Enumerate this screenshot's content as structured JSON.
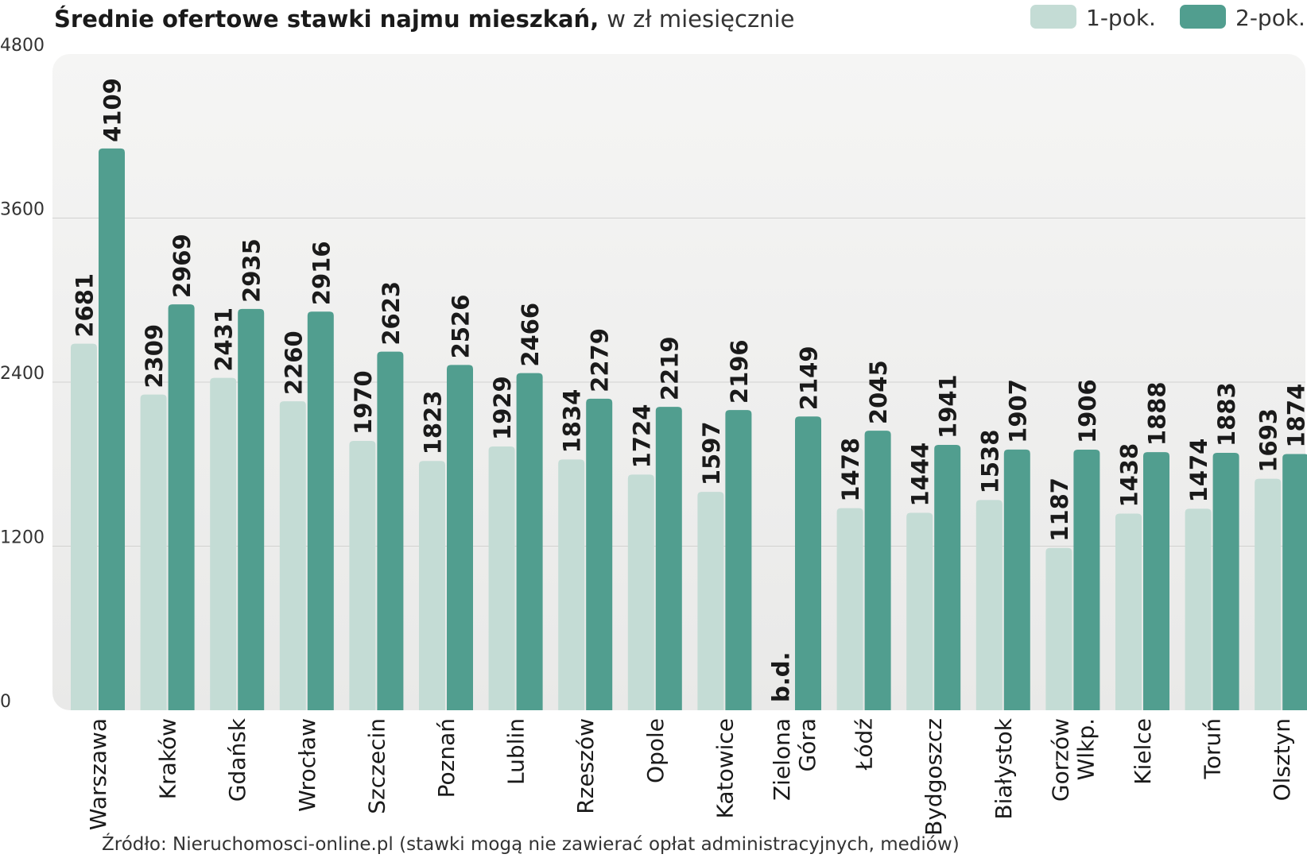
{
  "chart_data": {
    "type": "bar",
    "title": "Średnie ofertowe stawki najmu mieszkań,",
    "subtitle": "w zł miesięcznie",
    "source": "Źródło: Nieruchomosci-online.pl (stawki mogą nie zawierać opłat administracyjnych, mediów)",
    "ylim": [
      0,
      4800
    ],
    "yticks": [
      0,
      1200,
      2400,
      3600,
      4800
    ],
    "grid": true,
    "legend_position": "top-right",
    "missing_label": "b.d.",
    "categories": [
      [
        "Warszawa"
      ],
      [
        "Kraków"
      ],
      [
        "Gdańsk"
      ],
      [
        "Wrocław"
      ],
      [
        "Szczecin"
      ],
      [
        "Poznań"
      ],
      [
        "Lublin"
      ],
      [
        "Rzeszów"
      ],
      [
        "Opole"
      ],
      [
        "Katowice"
      ],
      [
        "Zielona",
        "Góra"
      ],
      [
        "Łódź"
      ],
      [
        "Bydgoszcz"
      ],
      [
        "Białystok"
      ],
      [
        "Gorzów",
        "Wlkp."
      ],
      [
        "Kielce"
      ],
      [
        "Toruń"
      ],
      [
        "Olsztyn"
      ]
    ],
    "series": [
      {
        "name": "1-pok.",
        "color": "#c4dcd5",
        "values": [
          2681,
          2309,
          2431,
          2260,
          1970,
          1823,
          1929,
          1834,
          1724,
          1597,
          null,
          1478,
          1444,
          1538,
          1187,
          1438,
          1474,
          1693
        ]
      },
      {
        "name": "2-pok.",
        "color": "#519e8f",
        "values": [
          4109,
          2969,
          2935,
          2916,
          2623,
          2526,
          2466,
          2279,
          2219,
          2196,
          2149,
          2045,
          1941,
          1907,
          1906,
          1888,
          1883,
          1874
        ]
      }
    ]
  }
}
